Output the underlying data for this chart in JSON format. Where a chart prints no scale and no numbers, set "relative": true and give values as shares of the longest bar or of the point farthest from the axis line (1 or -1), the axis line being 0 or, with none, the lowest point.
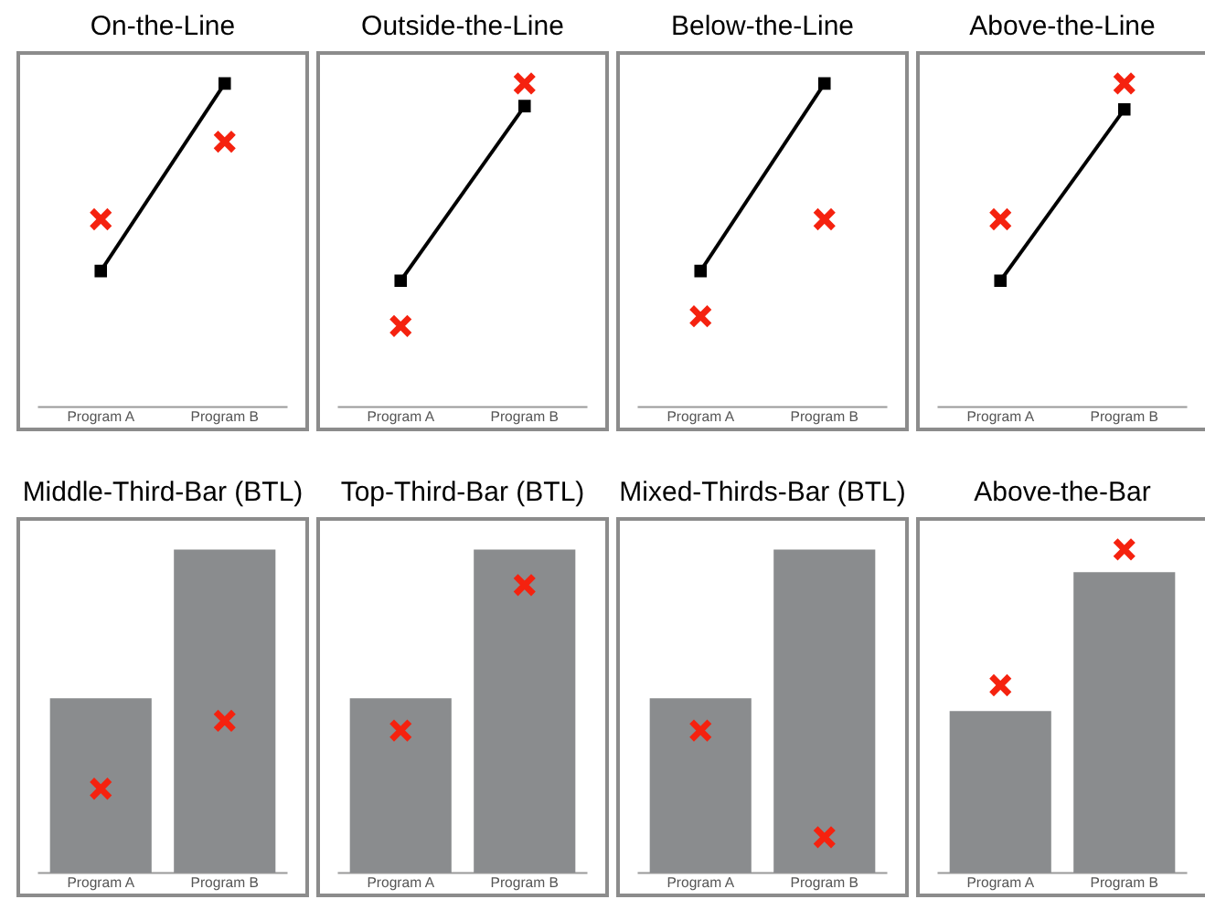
{
  "chart_data": [
    {
      "type": "line",
      "title": "On-the-Line",
      "relative": true,
      "categories": [
        "Program A",
        "Program B"
      ],
      "grid": false,
      "legend": false,
      "series": [
        {
          "color": "#000000",
          "marker": "square",
          "values": [
            0.42,
            1
          ]
        },
        {
          "type": "scatter",
          "color": "#f5220f",
          "marker": "cross",
          "values": [
            0.58,
            0.82
          ]
        }
      ]
    },
    {
      "type": "line",
      "title": "Outside-the-Line",
      "relative": true,
      "categories": [
        "Program A",
        "Program B"
      ],
      "grid": false,
      "legend": false,
      "series": [
        {
          "color": "#000000",
          "marker": "square",
          "values": [
            0.39,
            0.93
          ]
        },
        {
          "type": "scatter",
          "color": "#f5220f",
          "marker": "cross",
          "values": [
            0.25,
            1
          ]
        }
      ]
    },
    {
      "type": "line",
      "title": "Below-the-Line",
      "relative": true,
      "categories": [
        "Program A",
        "Program B"
      ],
      "grid": false,
      "legend": false,
      "series": [
        {
          "color": "#000000",
          "marker": "square",
          "values": [
            0.42,
            1
          ]
        },
        {
          "type": "scatter",
          "color": "#f5220f",
          "marker": "cross",
          "values": [
            0.28,
            0.58
          ]
        }
      ]
    },
    {
      "type": "line",
      "title": "Above-the-Line",
      "relative": true,
      "categories": [
        "Program A",
        "Program B"
      ],
      "grid": false,
      "legend": false,
      "series": [
        {
          "color": "#000000",
          "marker": "square",
          "values": [
            0.39,
            0.92
          ]
        },
        {
          "type": "scatter",
          "color": "#f5220f",
          "marker": "cross",
          "values": [
            0.58,
            1
          ]
        }
      ]
    },
    {
      "type": "bar",
      "title": "Middle-Third-Bar (BTL)",
      "relative": true,
      "categories": [
        "Program A",
        "Program B"
      ],
      "grid": false,
      "legend": false,
      "series": [
        {
          "color": "#8a8c8e",
          "values": [
            0.54,
            1
          ]
        },
        {
          "type": "scatter",
          "color": "#f5220f",
          "marker": "cross",
          "values": [
            0.26,
            0.47
          ]
        }
      ]
    },
    {
      "type": "bar",
      "title": "Top-Third-Bar (BTL)",
      "relative": true,
      "categories": [
        "Program A",
        "Program B"
      ],
      "grid": false,
      "legend": false,
      "series": [
        {
          "color": "#8a8c8e",
          "values": [
            0.54,
            1
          ]
        },
        {
          "type": "scatter",
          "color": "#f5220f",
          "marker": "cross",
          "values": [
            0.44,
            0.89
          ]
        }
      ]
    },
    {
      "type": "bar",
      "title": "Mixed-Thirds-Bar (BTL)",
      "relative": true,
      "categories": [
        "Program A",
        "Program B"
      ],
      "grid": false,
      "legend": false,
      "series": [
        {
          "color": "#8a8c8e",
          "values": [
            0.54,
            1
          ]
        },
        {
          "type": "scatter",
          "color": "#f5220f",
          "marker": "cross",
          "values": [
            0.44,
            0.11
          ]
        }
      ]
    },
    {
      "type": "bar",
      "title": "Above-the-Bar",
      "relative": true,
      "categories": [
        "Program A",
        "Program B"
      ],
      "grid": false,
      "legend": false,
      "series": [
        {
          "color": "#8a8c8e",
          "values": [
            0.5,
            0.93
          ]
        },
        {
          "type": "scatter",
          "color": "#f5220f",
          "marker": "cross",
          "values": [
            0.58,
            1
          ]
        }
      ]
    }
  ]
}
